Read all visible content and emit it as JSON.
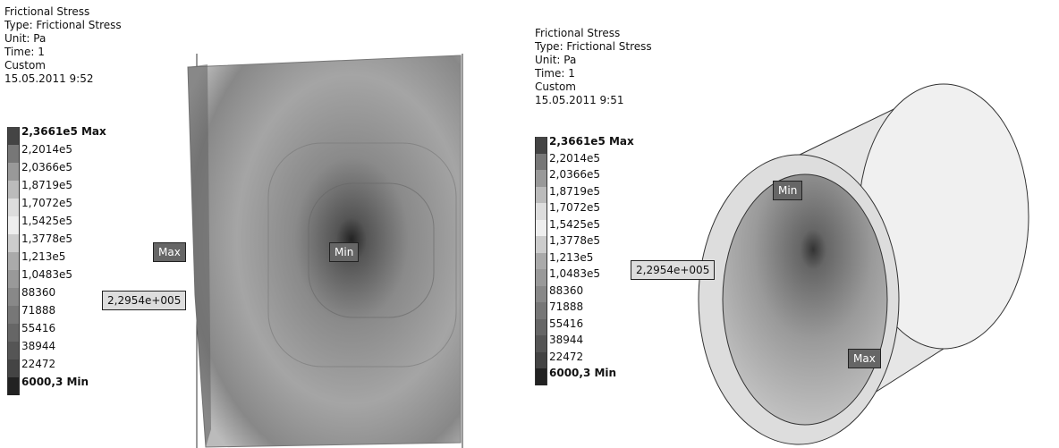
{
  "panels": [
    {
      "header": [
        "Frictional Stress",
        "Type: Frictional Stress",
        "Unit: Pa",
        "Time: 1",
        "Custom",
        "15.05.2011 9:52"
      ],
      "legend": [
        "2,3661e5 Max",
        "2,2014e5",
        "2,0366e5",
        "1,8719e5",
        "1,7072e5",
        "1,5425e5",
        "1,3778e5",
        "1,213e5",
        "1,0483e5",
        "88360",
        "71888",
        "55416",
        "38944",
        "22472",
        "6000,3 Min"
      ],
      "probes": [
        "Max",
        "Min",
        "2,2954e+005"
      ]
    },
    {
      "header": [
        "Frictional Stress",
        "Type: Frictional Stress",
        "Unit: Pa",
        "Time: 1",
        "Custom",
        "15.05.2011 9:51"
      ],
      "legend": [
        "2,3661e5 Max",
        "2,2014e5",
        "2,0366e5",
        "1,8719e5",
        "1,7072e5",
        "1,5425e5",
        "1,3778e5",
        "1,213e5",
        "1,0483e5",
        "88360",
        "71888",
        "55416",
        "38944",
        "22472",
        "6000,3 Min"
      ],
      "probes": [
        "Min",
        "2,2954e+005",
        "Max"
      ]
    }
  ]
}
